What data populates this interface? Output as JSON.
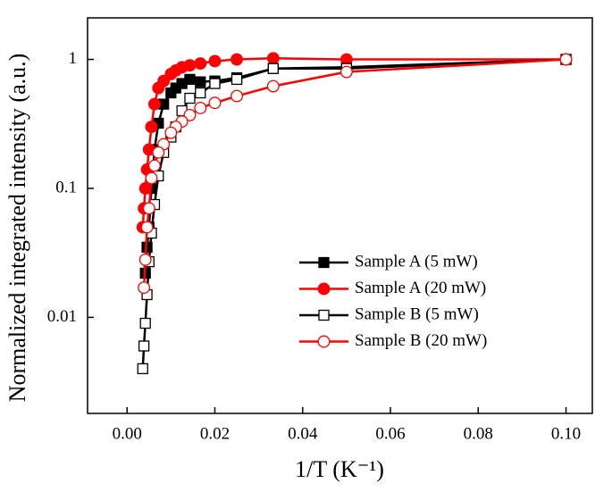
{
  "chart_data": {
    "type": "line",
    "xlabel": "1/T (K⁻¹)",
    "ylabel": "Normalized integrated intensity (a.u.)",
    "xlim": [
      -0.009,
      0.106
    ],
    "xticks": [
      {
        "value": 0,
        "label": "0.00"
      },
      {
        "value": 0.02,
        "label": "0.02"
      },
      {
        "value": 0.04,
        "label": "0.04"
      },
      {
        "value": 0.06,
        "label": "0.06"
      },
      {
        "value": 0.08,
        "label": "0.08"
      },
      {
        "value": 0.1,
        "label": "0.10"
      }
    ],
    "ylim": [
      0.0018,
      2.1
    ],
    "yticks": [
      0.01,
      0.1,
      1
    ],
    "log_y": true,
    "legend_loc": "lower right",
    "series": [
      {
        "name": "Sample A (5 mW)",
        "color": "#000000",
        "marker": "square",
        "filled": true,
        "x": [
          0.1,
          0.05,
          0.0333,
          0.025,
          0.02,
          0.0167,
          0.0143,
          0.0125,
          0.0111,
          0.01,
          0.00833,
          0.00714,
          0.00625,
          0.00556,
          0.005,
          0.00455,
          0.00417
        ],
        "values": [
          1,
          0.87,
          0.85,
          0.72,
          0.68,
          0.67,
          0.7,
          0.65,
          0.6,
          0.55,
          0.45,
          0.32,
          0.2,
          0.1,
          0.05,
          0.035,
          0.022
        ]
      },
      {
        "name": "Sample A (20 mW)",
        "color": "#ff0000",
        "marker": "circle",
        "filled": true,
        "x": [
          0.1,
          0.05,
          0.0333,
          0.025,
          0.02,
          0.0167,
          0.0143,
          0.0125,
          0.0111,
          0.01,
          0.00833,
          0.00714,
          0.00625,
          0.00556,
          0.005,
          0.00455,
          0.00417,
          0.00385,
          0.00357
        ],
        "values": [
          1,
          1,
          1.02,
          1,
          0.97,
          0.93,
          0.9,
          0.87,
          0.82,
          0.77,
          0.68,
          0.6,
          0.45,
          0.3,
          0.2,
          0.14,
          0.1,
          0.07,
          0.05
        ]
      },
      {
        "name": "Sample B (5 mW)",
        "color": "#000000",
        "marker": "square",
        "filled": false,
        "x": [
          0.1,
          0.05,
          0.0333,
          0.025,
          0.02,
          0.0167,
          0.0143,
          0.0125,
          0.0111,
          0.01,
          0.00833,
          0.00714,
          0.00625,
          0.00556,
          0.005,
          0.00455,
          0.00417,
          0.00385,
          0.00357
        ],
        "values": [
          1,
          0.85,
          0.85,
          0.7,
          0.65,
          0.55,
          0.5,
          0.4,
          0.3,
          0.25,
          0.19,
          0.125,
          0.075,
          0.045,
          0.027,
          0.015,
          0.009,
          0.006,
          0.004
        ]
      },
      {
        "name": "Sample B (20 mW)",
        "color": "#ff0000",
        "marker": "circle",
        "filled": false,
        "x": [
          0.1,
          0.05,
          0.0333,
          0.025,
          0.02,
          0.0167,
          0.0143,
          0.0125,
          0.0111,
          0.01,
          0.00833,
          0.00714,
          0.00625,
          0.00556,
          0.005,
          0.00455,
          0.00417,
          0.00385
        ],
        "values": [
          1,
          0.8,
          0.62,
          0.52,
          0.46,
          0.42,
          0.37,
          0.33,
          0.3,
          0.27,
          0.22,
          0.19,
          0.15,
          0.12,
          0.07,
          0.05,
          0.028,
          0.017
        ]
      }
    ]
  }
}
